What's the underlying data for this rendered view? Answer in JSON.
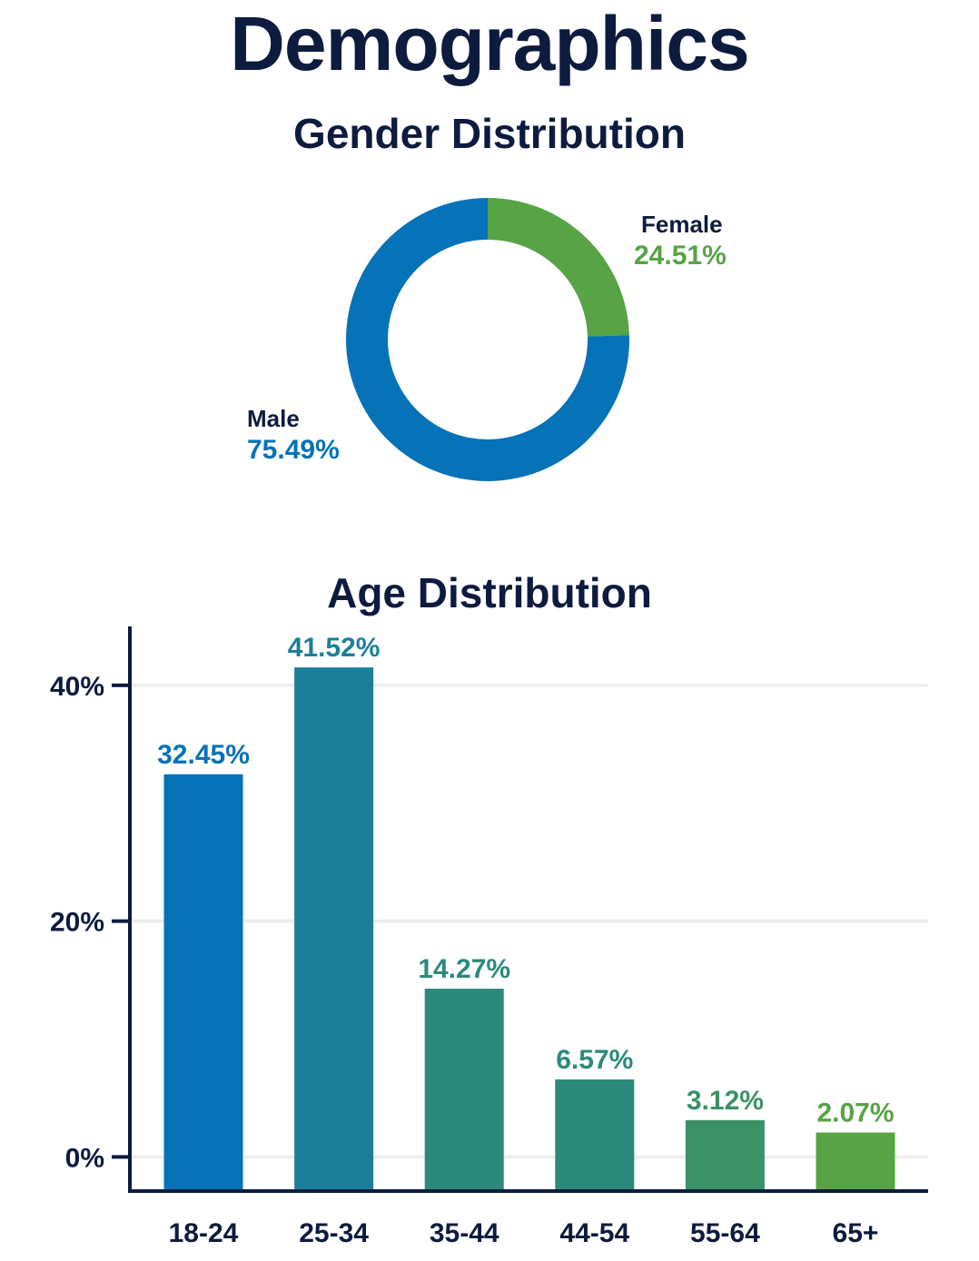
{
  "title": "Demographics",
  "colors": {
    "text": "#0d1b3e",
    "male": "#0672b8",
    "female": "#57a346",
    "grid": "#eeeeee",
    "axis": "#0d1b3e"
  },
  "chart_data": [
    {
      "type": "pie",
      "title": "Gender Distribution",
      "donut": true,
      "slices": [
        {
          "label": "Female",
          "value": 24.51,
          "display": "24.51%",
          "color": "#57a346"
        },
        {
          "label": "Male",
          "value": 75.49,
          "display": "75.49%",
          "color": "#0672b8"
        }
      ]
    },
    {
      "type": "bar",
      "title": "Age Distribution",
      "xlabel": "",
      "ylabel": "",
      "ylim": [
        -2.9,
        45
      ],
      "yticks": [
        {
          "value": 0,
          "label": "0%"
        },
        {
          "value": 20,
          "label": "20%"
        },
        {
          "value": 40,
          "label": "40%"
        }
      ],
      "grid": true,
      "categories": [
        "18-24",
        "25-34",
        "35-44",
        "44-54",
        "55-64",
        "65+"
      ],
      "values": [
        32.45,
        41.52,
        14.27,
        6.57,
        3.12,
        2.07
      ],
      "value_labels": [
        "32.45%",
        "41.52%",
        "14.27%",
        "6.57%",
        "3.12%",
        "2.07%"
      ],
      "colors": [
        "#0672b8",
        "#1b7f9a",
        "#2c8a7c",
        "#2b8a7a",
        "#3a9166",
        "#57a346"
      ]
    }
  ]
}
